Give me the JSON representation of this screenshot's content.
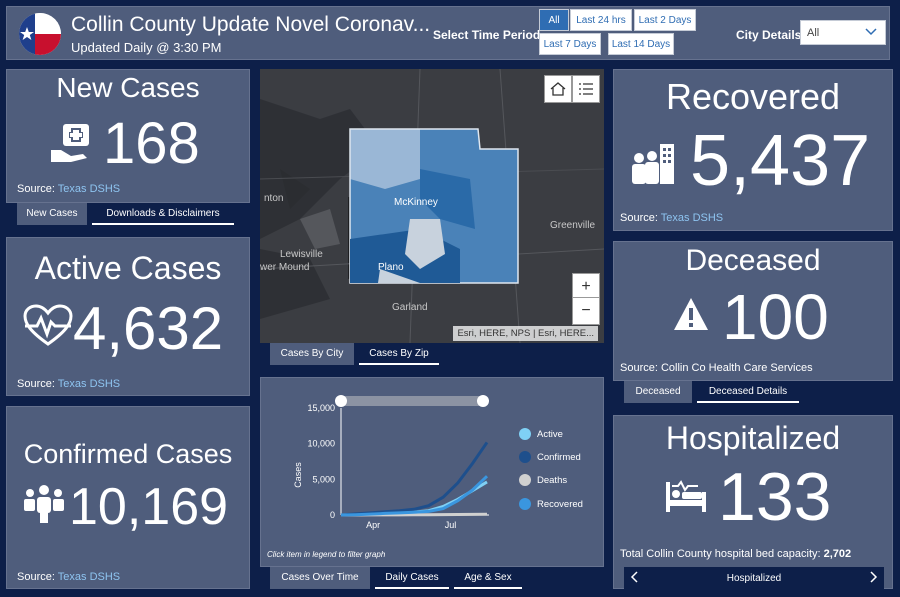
{
  "header": {
    "title": "Collin County Update Novel Coronav...",
    "subtitle": "Updated Daily @ 3:30 PM",
    "time_label": "Select Time Period",
    "time_buttons": [
      "All",
      "Last 24 hrs",
      "Last 2 Days",
      "Last 7 Days",
      "Last 14 Days"
    ],
    "city_label": "City Details",
    "city_value": "All"
  },
  "new_cases": {
    "title": "New Cases",
    "value": "168",
    "source_prefix": "Source:",
    "source_link": "Texas DSHS",
    "tabs": [
      "New Cases",
      "Downloads & Disclaimers"
    ]
  },
  "active_cases": {
    "title": "Active Cases",
    "value": "4,632",
    "source_prefix": "Source:",
    "source_link": "Texas DSHS"
  },
  "confirmed_cases": {
    "title": "Confirmed Cases",
    "value": "10,169",
    "source_prefix": "Source:",
    "source_link": "Texas DSHS"
  },
  "map": {
    "labels": [
      "Lewisville",
      "wer Mound",
      "McKinney",
      "Plano",
      "Garland",
      "Greenville",
      "nton"
    ],
    "attribution": "Esri, HERE, NPS | Esri, HERE...",
    "zoom_in": "+",
    "zoom_out": "−",
    "tabs": [
      "Cases By City",
      "Cases By Zip"
    ]
  },
  "chart": {
    "hint": "Click item in legend to filter graph",
    "tabs": [
      "Cases Over Time",
      "Daily Cases",
      "Age & Sex"
    ]
  },
  "chart_data": {
    "type": "line",
    "ylabel": "Cases",
    "xlabel": "",
    "ylim": [
      0,
      15000
    ],
    "yticks": [
      "15,000",
      "10,000",
      "5,000",
      "0"
    ],
    "xticks": [
      "Apr",
      "Jul"
    ],
    "x": [
      0,
      0.1,
      0.2,
      0.3,
      0.4,
      0.5,
      0.6,
      0.7,
      0.8,
      0.9,
      1.0
    ],
    "series": [
      {
        "name": "Active",
        "color": "#7fd0f5",
        "values": [
          0,
          80,
          150,
          220,
          300,
          400,
          600,
          1200,
          2200,
          3400,
          4632
        ]
      },
      {
        "name": "Confirmed",
        "color": "#1e4f8c",
        "values": [
          0,
          150,
          300,
          450,
          600,
          800,
          1300,
          2500,
          4500,
          7200,
          10169
        ]
      },
      {
        "name": "Deaths",
        "color": "#d0d0d0",
        "values": [
          0,
          5,
          10,
          15,
          20,
          30,
          40,
          55,
          70,
          85,
          100
        ]
      },
      {
        "name": "Recovered",
        "color": "#3a96df",
        "values": [
          0,
          40,
          120,
          220,
          300,
          380,
          500,
          900,
          2000,
          3500,
          5437
        ]
      }
    ],
    "grid": false,
    "legend": "right"
  },
  "recovered": {
    "title": "Recovered",
    "value": "5,437",
    "source_prefix": "Source:",
    "source_link": "Texas DSHS"
  },
  "deceased": {
    "title": "Deceased",
    "value": "100",
    "source": "Source: Collin Co Health Care Services",
    "tabs": [
      "Deceased",
      "Deceased Details"
    ]
  },
  "hospitalized": {
    "title": "Hospitalized",
    "value": "133",
    "capacity_label": "Total Collin County hospital bed capacity:",
    "capacity_value": "2,702",
    "nav_label": "Hospitalized"
  },
  "colors": {
    "background": "#0d1f49",
    "panel": "#4f5d7c",
    "link": "#8ec4f0",
    "accent": "#2f6db3"
  }
}
